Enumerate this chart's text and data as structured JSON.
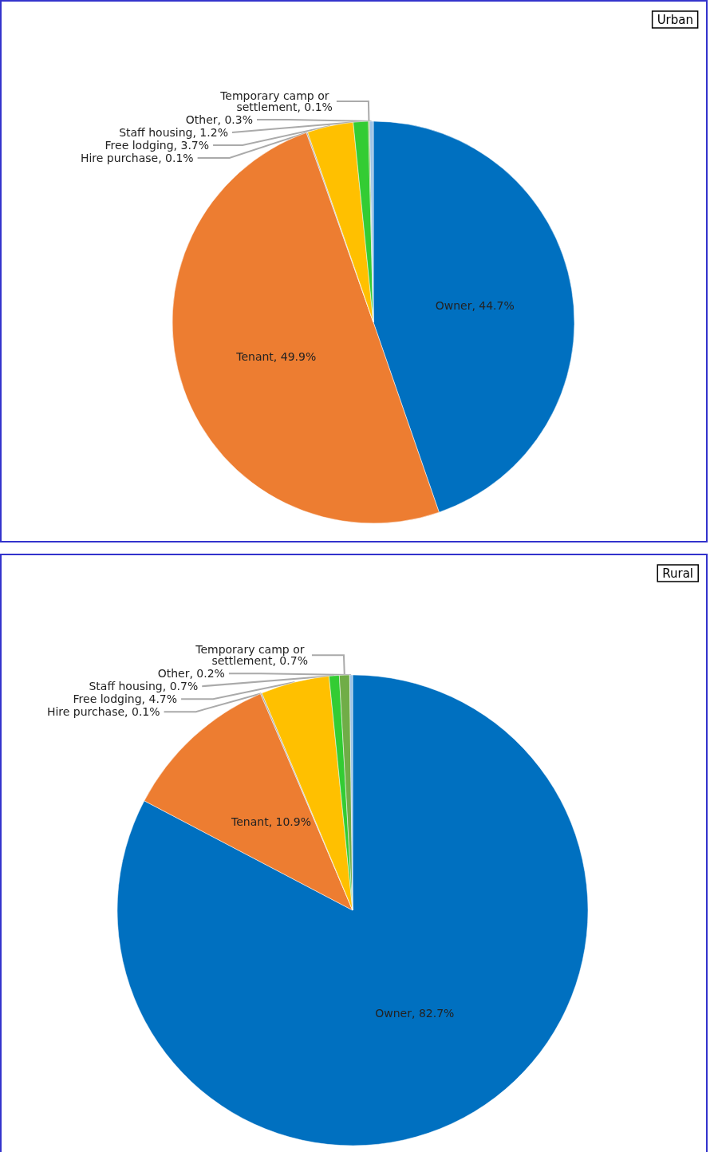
{
  "chart_data": [
    {
      "type": "pie",
      "title": "Urban",
      "categories": [
        "Owner",
        "Tenant",
        "Hire purchase",
        "Free lodging",
        "Staff housing",
        "Temporary camp or settlement",
        "Other"
      ],
      "values": [
        44.7,
        49.9,
        0.1,
        3.7,
        1.2,
        0.1,
        0.3
      ],
      "value_labels": [
        "44.7%",
        "49.9%",
        "0.1%",
        "3.7%",
        "1.2%",
        "0.1%",
        "0.3%"
      ],
      "colors": [
        "#0070c0",
        "#ed7d31",
        "#a5a5a5",
        "#ffc000",
        "#33cc33",
        "#70ad47",
        "#9dc3e6"
      ],
      "legend": false
    },
    {
      "type": "pie",
      "title": "Rural",
      "categories": [
        "Owner",
        "Tenant",
        "Hire purchase",
        "Free lodging",
        "Staff housing",
        "Temporary camp or settlement",
        "Other"
      ],
      "values": [
        82.7,
        10.9,
        0.1,
        4.7,
        0.7,
        0.7,
        0.2
      ],
      "value_labels": [
        "82.7%",
        "10.9%",
        "0.1%",
        "4.7%",
        "0.7%",
        "0.7%",
        "0.2%"
      ],
      "colors": [
        "#0070c0",
        "#ed7d31",
        "#a5a5a5",
        "#ffc000",
        "#33cc33",
        "#70ad47",
        "#9dc3e6"
      ],
      "legend": false
    }
  ]
}
